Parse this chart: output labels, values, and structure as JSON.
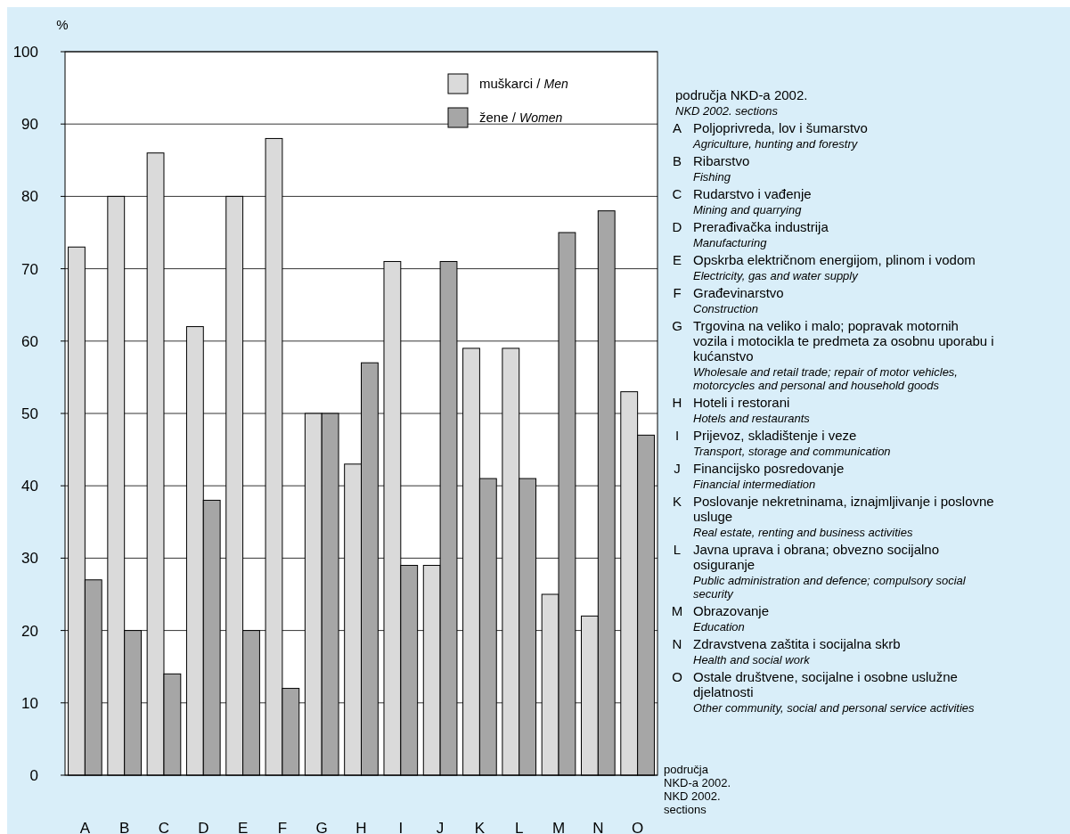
{
  "chart_data": {
    "type": "bar",
    "ylabel": "%",
    "xlabel": "područja NKD-a 2002. NKD 2002. sections",
    "categories": [
      "A",
      "B",
      "C",
      "D",
      "E",
      "F",
      "G",
      "H",
      "I",
      "J",
      "K",
      "L",
      "M",
      "N",
      "O"
    ],
    "series": [
      {
        "name": "muškarci / Men",
        "color": "#dadada",
        "values": [
          73,
          80,
          86,
          62,
          80,
          88,
          50,
          43,
          71,
          29,
          59,
          59,
          25,
          22,
          53
        ]
      },
      {
        "name": "žene / Women",
        "color": "#a6a6a6",
        "values": [
          27,
          20,
          14,
          38,
          20,
          12,
          50,
          57,
          29,
          71,
          41,
          41,
          75,
          78,
          47
        ]
      }
    ],
    "ylim": [
      0,
      100
    ],
    "yticks": [
      0,
      10,
      20,
      30,
      40,
      50,
      60,
      70,
      80,
      90,
      100
    ],
    "grid": "y",
    "legend": "top right",
    "annotations": [
      "područja NKD-a 2002.",
      "NKD 2002. sections",
      "A Poljoprivreda, lov i šumarstvo",
      "Agriculture, hunting and forestry",
      "B Ribarstvo",
      "Fishing",
      "C Rudarstvo i vađenje",
      "Mining and quarrying",
      "D Prerađivačka industrija",
      "Manufacturing",
      "E Opskrba električnom energijom, plinom i vodom",
      "Electricity, gas and water supply",
      "F Građevinarstvo",
      "Construction",
      "G Trgovina na veliko i malo; popravak motornih vozila i motocikla te predmeta za osobnu uporabu i kućanstvo",
      "Wholesale and retail trade; repair of motor vehicles, motorcycles and personal and household goods",
      "H Hoteli i restorani",
      "Hotels and restaurants",
      "I Prijevoz, skladištenje i veze",
      "Transport, storage and communication",
      "J Financijsko posredovanje",
      "Financial intermediation",
      "K Poslovanje nekretninama, iznajmljivanje i poslovne usluge",
      "Real estate, renting and business activities",
      "L Javna uprava i obrana; obvezno socijalno osiguranje",
      "Public administration and defence; compulsory social security",
      "M Obrazovanje",
      "Education",
      "N Zdravstvena zaštita i socijalna skrb",
      "Health and social work",
      "O Ostale društvene, socijalne i osobne uslužne djelatnosti",
      "Other community, social and personal service activities"
    ]
  }
}
